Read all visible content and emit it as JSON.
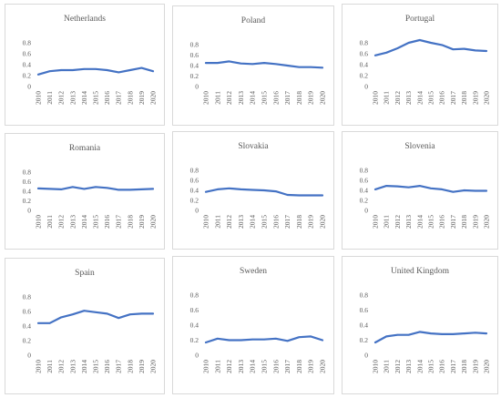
{
  "chart_data": [
    {
      "type": "line",
      "title": "Netherlands",
      "categories": [
        "2010",
        "2011",
        "2012",
        "2013",
        "2014",
        "2015",
        "2016",
        "2017",
        "2018",
        "2019",
        "2020"
      ],
      "yticks": [
        "0",
        "0.2",
        "0.4",
        "0.6",
        "0.8"
      ],
      "ylim": [
        0,
        0.8
      ],
      "series": [
        {
          "color": "#4472c4",
          "values": [
            0.22,
            0.28,
            0.3,
            0.3,
            0.32,
            0.32,
            0.3,
            0.26,
            0.3,
            0.34,
            0.28
          ]
        }
      ]
    },
    {
      "type": "line",
      "title": "Poland",
      "categories": [
        "2010",
        "2011",
        "2012",
        "2013",
        "2014",
        "2015",
        "2016",
        "2017",
        "2018",
        "2019",
        "2020"
      ],
      "yticks": [
        "0",
        "0.2",
        "0.4",
        "0.6",
        "0.8"
      ],
      "ylim": [
        0,
        0.8
      ],
      "series": [
        {
          "color": "#4472c4",
          "values": [
            0.45,
            0.45,
            0.48,
            0.44,
            0.43,
            0.45,
            0.43,
            0.4,
            0.37,
            0.37,
            0.36
          ]
        }
      ]
    },
    {
      "type": "line",
      "title": "Portugal",
      "categories": [
        "2010",
        "2011",
        "2012",
        "2013",
        "2014",
        "2015",
        "2016",
        "2017",
        "2018",
        "2019",
        "2020"
      ],
      "yticks": [
        "0",
        "0.2",
        "0.4",
        "0.6",
        "0.8"
      ],
      "ylim": [
        0,
        0.8
      ],
      "series": [
        {
          "color": "#4472c4",
          "values": [
            0.57,
            0.62,
            0.7,
            0.8,
            0.85,
            0.8,
            0.76,
            0.68,
            0.69,
            0.66,
            0.65
          ]
        }
      ]
    },
    {
      "type": "line",
      "title": "Romania",
      "categories": [
        "2010",
        "2011",
        "2012",
        "2013",
        "2014",
        "2015",
        "2016",
        "2017",
        "2018",
        "2019",
        "2020"
      ],
      "yticks": [
        "0",
        "0.2",
        "0.4",
        "0.6",
        "0.8"
      ],
      "ylim": [
        0,
        0.8
      ],
      "series": [
        {
          "color": "#4472c4",
          "values": [
            0.46,
            0.45,
            0.44,
            0.49,
            0.45,
            0.49,
            0.47,
            0.43,
            0.43,
            0.44,
            0.45
          ]
        }
      ]
    },
    {
      "type": "line",
      "title": "Slovakia",
      "categories": [
        "2010",
        "2011",
        "2012",
        "2013",
        "2014",
        "2015",
        "2016",
        "2017",
        "2018",
        "2019",
        "2020"
      ],
      "yticks": [
        "0",
        "0.2",
        "0.4",
        "0.6",
        "0.8"
      ],
      "ylim": [
        0,
        0.8
      ],
      "series": [
        {
          "color": "#4472c4",
          "values": [
            0.37,
            0.42,
            0.44,
            0.42,
            0.41,
            0.4,
            0.38,
            0.31,
            0.3,
            0.3,
            0.3
          ]
        }
      ]
    },
    {
      "type": "line",
      "title": "Slovenia",
      "categories": [
        "2010",
        "2011",
        "2012",
        "2013",
        "2014",
        "2015",
        "2016",
        "2017",
        "2018",
        "2019",
        "2020"
      ],
      "yticks": [
        "0",
        "0.2",
        "0.4",
        "0.6",
        "0.8"
      ],
      "ylim": [
        0,
        0.8
      ],
      "series": [
        {
          "color": "#4472c4",
          "values": [
            0.42,
            0.49,
            0.48,
            0.46,
            0.49,
            0.44,
            0.42,
            0.37,
            0.4,
            0.39,
            0.39
          ]
        }
      ]
    },
    {
      "type": "line",
      "title": "Spain",
      "categories": [
        "2010",
        "2011",
        "2012",
        "2013",
        "2014",
        "2015",
        "2016",
        "2017",
        "2018",
        "2019",
        "2020"
      ],
      "yticks": [
        "0",
        "0.2",
        "0.4",
        "0.6",
        "0.8"
      ],
      "ylim": [
        0,
        0.8
      ],
      "series": [
        {
          "color": "#4472c4",
          "values": [
            0.44,
            0.44,
            0.52,
            0.56,
            0.61,
            0.59,
            0.57,
            0.51,
            0.56,
            0.57,
            0.57
          ]
        }
      ]
    },
    {
      "type": "line",
      "title": "Sweden",
      "categories": [
        "2010",
        "2011",
        "2012",
        "2013",
        "2014",
        "2015",
        "2016",
        "2017",
        "2018",
        "2019",
        "2020"
      ],
      "yticks": [
        "0",
        "0.2",
        "0.4",
        "0.6",
        "0.8"
      ],
      "ylim": [
        0,
        0.8
      ],
      "series": [
        {
          "color": "#4472c4",
          "values": [
            0.17,
            0.22,
            0.2,
            0.2,
            0.21,
            0.21,
            0.22,
            0.19,
            0.24,
            0.25,
            0.2
          ]
        }
      ]
    },
    {
      "type": "line",
      "title": "United Kingdom",
      "categories": [
        "2010",
        "2011",
        "2012",
        "2013",
        "2014",
        "2015",
        "2016",
        "2017",
        "2018",
        "2019",
        "2020"
      ],
      "yticks": [
        "0",
        "0.2",
        "0.4",
        "0.6",
        "0.8"
      ],
      "ylim": [
        0,
        0.8
      ],
      "series": [
        {
          "color": "#4472c4",
          "values": [
            0.17,
            0.25,
            0.27,
            0.27,
            0.31,
            0.29,
            0.28,
            0.28,
            0.29,
            0.3,
            0.29
          ]
        }
      ]
    }
  ]
}
